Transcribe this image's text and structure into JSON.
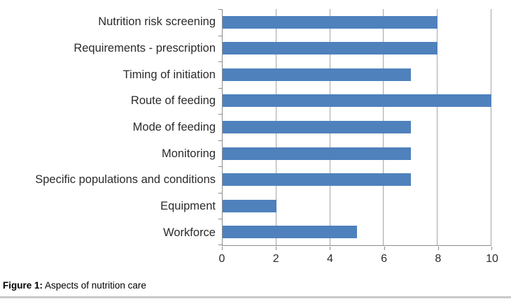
{
  "figure": {
    "caption_prefix": "Figure 1:",
    "caption_text": " Aspects of nutrition care"
  },
  "chart_data": {
    "type": "bar",
    "orientation": "horizontal",
    "title": "",
    "xlabel": "",
    "ylabel": "",
    "categories": [
      "Nutrition risk screening",
      "Requirements - prescription",
      "Timing of initiation",
      "Route of feeding",
      "Mode of feeding",
      "Monitoring",
      "Specific populations and conditions",
      "Equipment",
      "Workforce"
    ],
    "values": [
      8,
      8,
      7,
      10,
      7,
      7,
      7,
      2,
      5
    ],
    "xlim": [
      0,
      10
    ],
    "xticks": [
      0,
      2,
      4,
      6,
      8,
      10
    ],
    "grid": true,
    "legend": "none",
    "bar_color": "#4F81BD",
    "axis_color": "#8c8c8c",
    "gridline_color": "#a6a6a6"
  }
}
